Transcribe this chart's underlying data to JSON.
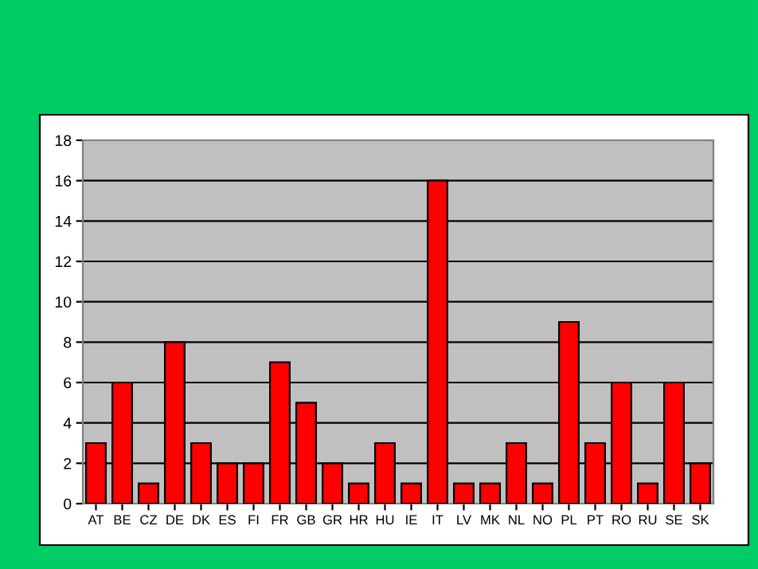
{
  "chart_data": {
    "type": "bar",
    "categories": [
      "AT",
      "BE",
      "CZ",
      "DE",
      "DK",
      "ES",
      "FI",
      "FR",
      "GB",
      "GR",
      "HR",
      "HU",
      "IE",
      "IT",
      "LV",
      "MK",
      "NL",
      "NO",
      "PL",
      "PT",
      "RO",
      "RU",
      "SE",
      "SK"
    ],
    "values": [
      3,
      6,
      1,
      8,
      3,
      2,
      2,
      7,
      5,
      2,
      1,
      3,
      1,
      16,
      1,
      1,
      3,
      1,
      9,
      3,
      6,
      1,
      6,
      2
    ],
    "color": "#ff0000",
    "ylim": [
      0,
      18
    ],
    "yticks": [
      0,
      2,
      4,
      6,
      8,
      10,
      12,
      14,
      16,
      18
    ],
    "grid": "y"
  }
}
